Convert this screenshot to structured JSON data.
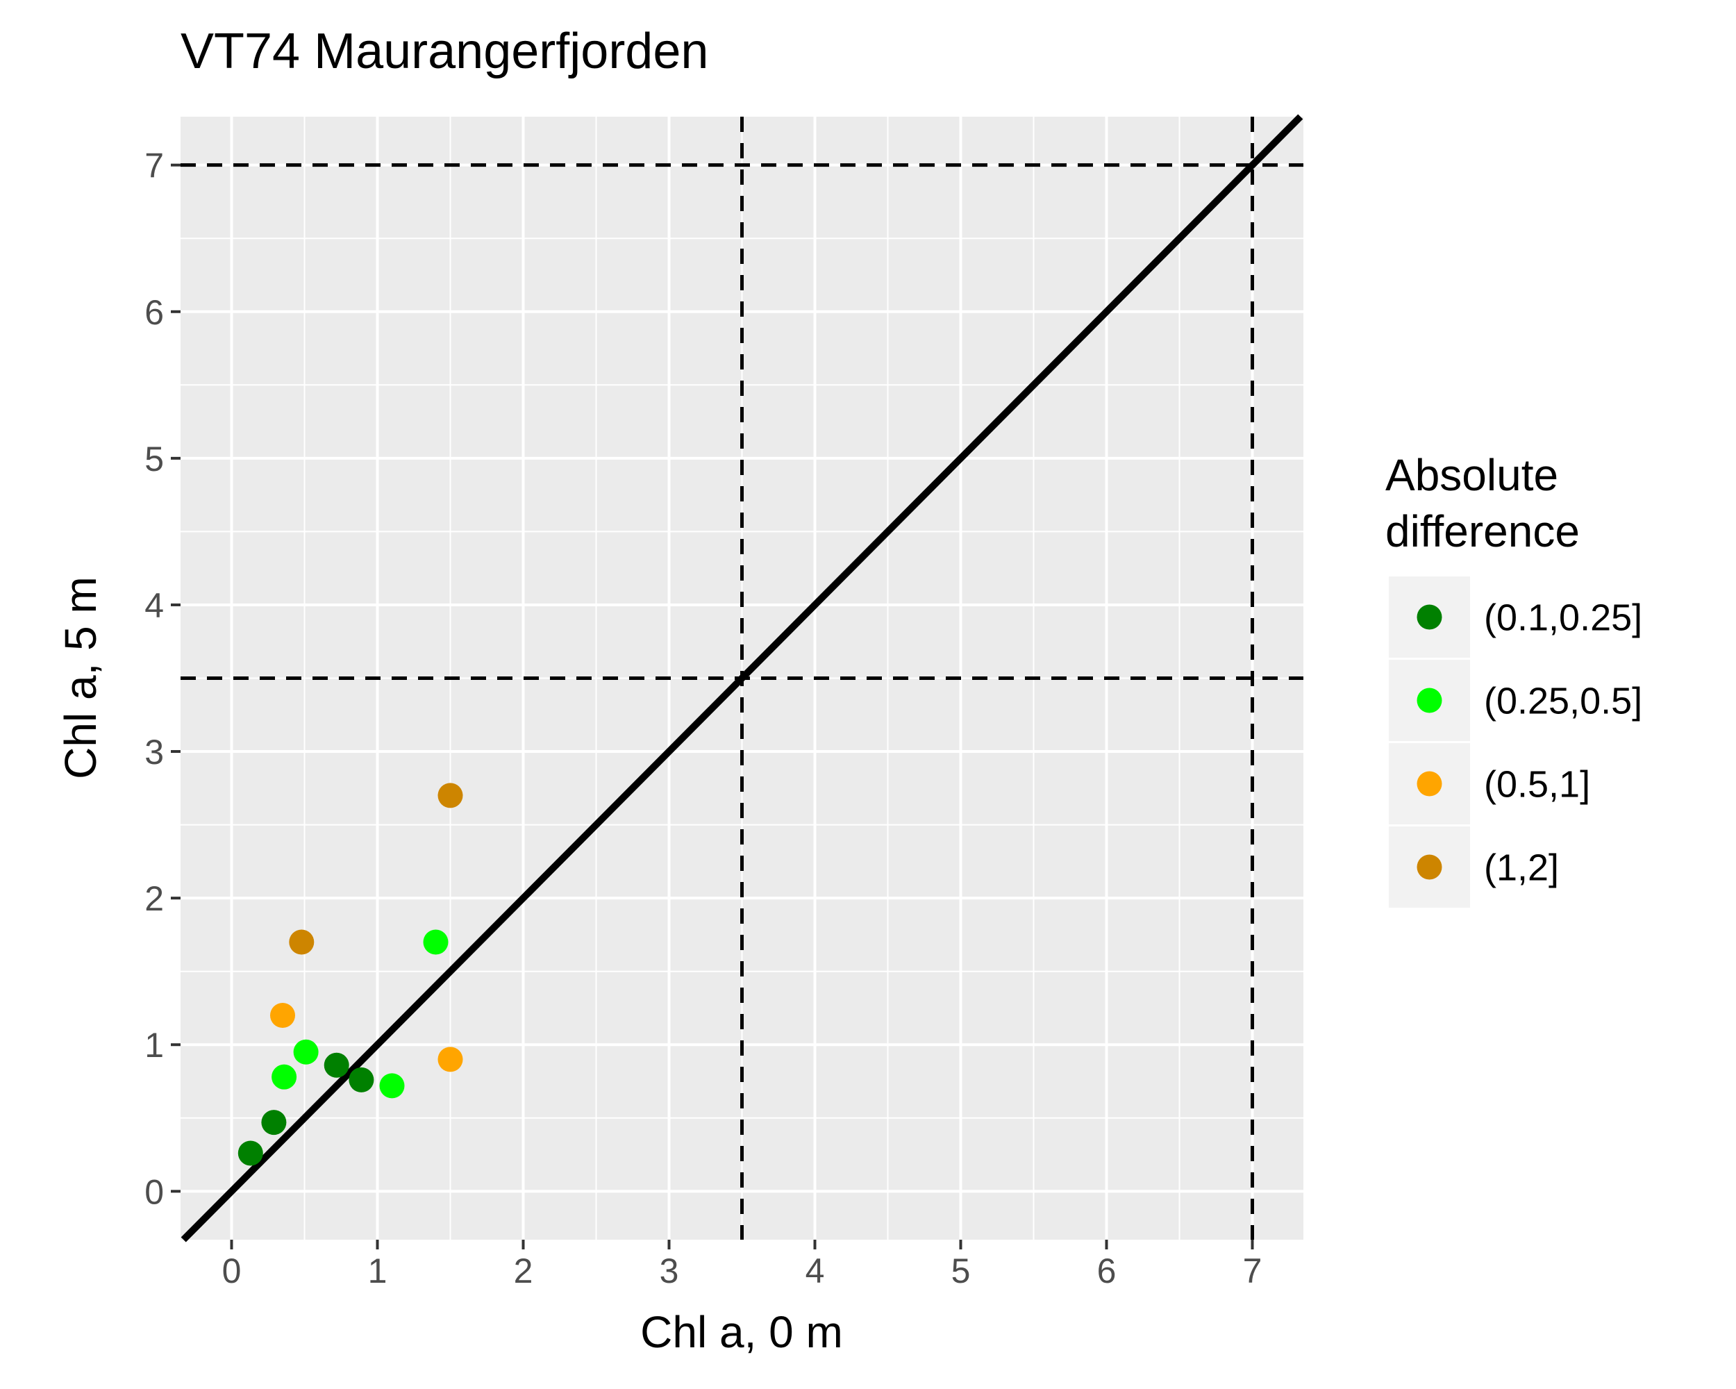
{
  "chart_data": {
    "type": "scatter",
    "title": "VT74 Maurangerfjorden",
    "xlabel": "Chl a, 0 m",
    "ylabel": "Chl a, 5 m",
    "xlim": [
      -0.35,
      7.35
    ],
    "ylim": [
      -0.33,
      7.33
    ],
    "xticks": [
      "0",
      "1",
      "2",
      "3",
      "4",
      "5",
      "6",
      "7"
    ],
    "yticks": [
      "0",
      "1",
      "2",
      "3",
      "4",
      "5",
      "6",
      "7"
    ],
    "grid": true,
    "reference_lines": {
      "identity_line": true,
      "vertical_dashed": [
        3.5,
        7
      ],
      "horizontal_dashed": [
        3.5,
        7
      ]
    },
    "legend": {
      "title": "Absolute\ndifference",
      "title_lines": [
        "Absolute",
        "difference"
      ],
      "placement": "right"
    },
    "series": [
      {
        "name": "(0.1,0.25]",
        "color": "#008000",
        "points": [
          [
            0.13,
            0.26
          ],
          [
            0.29,
            0.47
          ],
          [
            0.72,
            0.86
          ],
          [
            0.89,
            0.76
          ]
        ]
      },
      {
        "name": "(0.25,0.5]",
        "color": "#00ff00",
        "points": [
          [
            0.36,
            0.78
          ],
          [
            0.51,
            0.95
          ],
          [
            1.1,
            0.72
          ],
          [
            1.4,
            1.7
          ]
        ]
      },
      {
        "name": "(0.5,1]",
        "color": "#ffa500",
        "points": [
          [
            0.35,
            1.2
          ],
          [
            1.5,
            0.9
          ]
        ]
      },
      {
        "name": "(1,2]",
        "color": "#cd8500",
        "points": [
          [
            0.48,
            1.7
          ],
          [
            1.5,
            2.7
          ]
        ]
      }
    ]
  }
}
